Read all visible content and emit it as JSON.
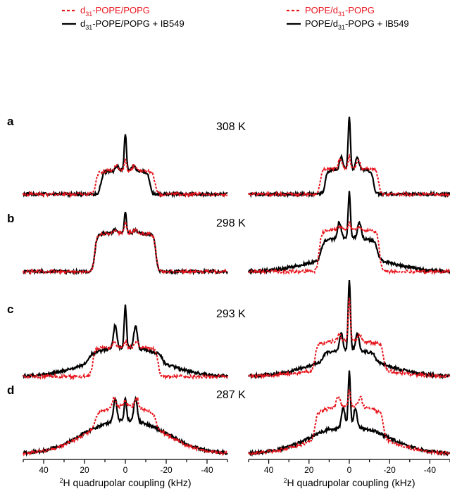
{
  "chart_data": {
    "type": "line",
    "xlim": [
      50,
      -50
    ],
    "x_ticks": [
      "40",
      "20",
      "0",
      "-20",
      "-40"
    ],
    "x_tick_values": [
      40,
      20,
      0,
      -20,
      -40
    ],
    "xlabel_prefix": "2",
    "xlabel": "H quadrupolar coupling (kHz)",
    "rows": [
      {
        "letter": "a",
        "temperature": "308 K"
      },
      {
        "letter": "b",
        "temperature": "298 K"
      },
      {
        "letter": "c",
        "temperature": "293 K"
      },
      {
        "letter": "d",
        "temperature": "287 K"
      }
    ],
    "columns": [
      {
        "legend": [
          {
            "style": "dashed",
            "color": "#e8141c",
            "label_pre": "d",
            "label_sub": "31",
            "label_post": "-POPE/POPG"
          },
          {
            "style": "solid",
            "color": "#000000",
            "label_pre": "d",
            "label_sub": "31",
            "label_post": "-POPE/POPG + IB549"
          }
        ],
        "spectra": [
          {
            "red": {
              "edge": 14.5,
              "plateau": 0.38,
              "center": 0.55,
              "shoulder_pos": 4.5,
              "shoulder_h": 0.1,
              "wing": 0.0
            },
            "black": {
              "edge": 12.0,
              "plateau": 0.38,
              "center": 0.97,
              "shoulder_pos": 4.0,
              "shoulder_h": 0.08,
              "wing": 0.0
            }
          },
          {
            "red": {
              "edge": 15.0,
              "plateau": 0.6,
              "center": 0.75,
              "shoulder_pos": 5.0,
              "shoulder_h": 0.05,
              "wing": 0.0
            },
            "black": {
              "edge": 15.0,
              "plateau": 0.6,
              "center": 0.9,
              "shoulder_pos": 5.0,
              "shoulder_h": 0.05,
              "wing": 0.0
            }
          },
          {
            "red": {
              "edge": 16.0,
              "plateau": 0.45,
              "center": 0.55,
              "shoulder_pos": 5.5,
              "shoulder_h": 0.1,
              "wing": 0.0
            },
            "black": {
              "edge": 18.0,
              "plateau": 0.2,
              "center": 0.85,
              "shoulder_pos": 5.0,
              "shoulder_h": 0.35,
              "wing": 0.35
            }
          },
          {
            "red": {
              "edge": 15.0,
              "plateau": 0.35,
              "center": 0.45,
              "shoulder_pos": 5.5,
              "shoulder_h": 0.15,
              "wing": 0.55
            },
            "black": {
              "edge": 20.0,
              "plateau": 0.1,
              "center": 0.45,
              "shoulder_pos": 5.0,
              "shoulder_h": 0.35,
              "wing": 0.6
            }
          }
        ]
      },
      {
        "legend": [
          {
            "style": "dashed",
            "color": "#e8141c",
            "label_pre": "POPE/d",
            "label_sub": "31",
            "label_post": "-POPG"
          },
          {
            "style": "solid",
            "color": "#000000",
            "label_pre": "POPE/d",
            "label_sub": "31",
            "label_post": "-POPG + IB549"
          }
        ],
        "spectra": [
          {
            "red": {
              "edge": 14.5,
              "plateau": 0.42,
              "center": 0.6,
              "shoulder_pos": 4.5,
              "shoulder_h": 0.15,
              "wing": 0.0
            },
            "black": {
              "edge": 12.0,
              "plateau": 0.4,
              "center": 1.25,
              "shoulder_pos": 4.0,
              "shoulder_h": 0.2,
              "wing": 0.0
            }
          },
          {
            "red": {
              "edge": 15.0,
              "plateau": 0.65,
              "center": 0.75,
              "shoulder_pos": 5.0,
              "shoulder_h": 0.05,
              "wing": 0.0
            },
            "black": {
              "edge": 14.0,
              "plateau": 0.35,
              "center": 1.05,
              "shoulder_pos": 5.0,
              "shoulder_h": 0.25,
              "wing": 0.25
            }
          },
          {
            "red": {
              "edge": 17.0,
              "plateau": 0.45,
              "center": 1.1,
              "shoulder_pos": 5.0,
              "shoulder_h": 0.1,
              "wing": 0.15
            },
            "black": {
              "edge": 13.0,
              "plateau": 0.2,
              "center": 1.3,
              "shoulder_pos": 4.0,
              "shoulder_h": 0.25,
              "wing": 0.3
            }
          },
          {
            "red": {
              "edge": 17.0,
              "plateau": 0.5,
              "center": 0.75,
              "shoulder_pos": 5.5,
              "shoulder_h": 0.15,
              "wing": 0.35
            },
            "black": {
              "edge": 10.0,
              "plateau": 0.1,
              "center": 0.95,
              "shoulder_pos": 3.0,
              "shoulder_h": 0.3,
              "wing": 0.45
            }
          }
        ]
      }
    ]
  }
}
